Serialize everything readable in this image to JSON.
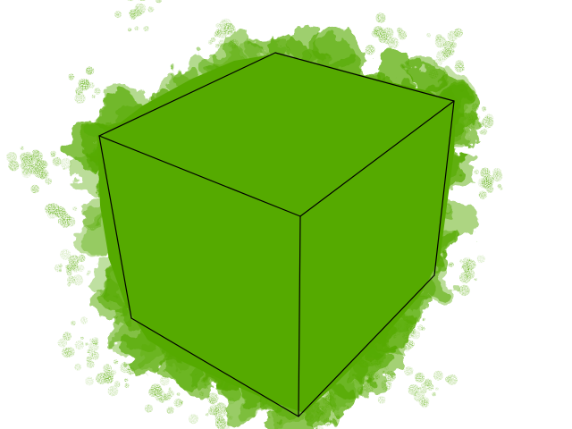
{
  "scene": {
    "background_color": "#ffffff",
    "cloud_color": "#55aa00",
    "edge_color": "#000000"
  }
}
